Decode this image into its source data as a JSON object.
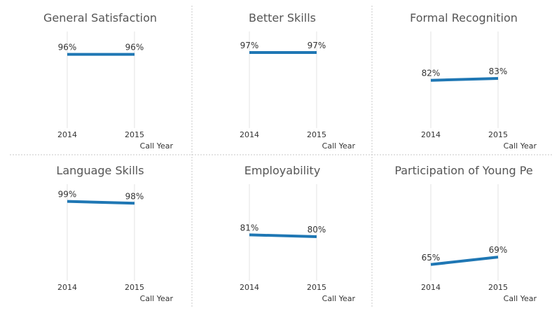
{
  "style": {
    "line_color": "#1f77b4",
    "gridline_color": "#e3e3e3",
    "divider_color": "#c8c8c8",
    "title_color": "#555555",
    "label_color": "#333333"
  },
  "chart_data": [
    {
      "type": "line",
      "title": "General Satisfaction",
      "x": [
        "2014",
        "2015"
      ],
      "xlabel": "Call Year",
      "series": [
        {
          "values": [
            0.96,
            0.96
          ]
        }
      ],
      "data_labels": [
        "96%",
        "96%"
      ],
      "ylim": [
        0.6,
        1.0
      ]
    },
    {
      "type": "line",
      "title": "Better Skills",
      "x": [
        "2014",
        "2015"
      ],
      "xlabel": "Call Year",
      "series": [
        {
          "values": [
            0.97,
            0.97
          ]
        }
      ],
      "data_labels": [
        "97%",
        "97%"
      ],
      "ylim": [
        0.6,
        1.0
      ]
    },
    {
      "type": "line",
      "title": "Formal Recognition",
      "x": [
        "2014",
        "2015"
      ],
      "xlabel": "Call Year",
      "series": [
        {
          "values": [
            0.82,
            0.83
          ]
        }
      ],
      "data_labels": [
        "82%",
        "83%"
      ],
      "ylim": [
        0.6,
        1.0
      ]
    },
    {
      "type": "line",
      "title": "Language Skills",
      "x": [
        "2014",
        "2015"
      ],
      "xlabel": "Call Year",
      "series": [
        {
          "values": [
            0.99,
            0.98
          ]
        }
      ],
      "data_labels": [
        "99%",
        "98%"
      ],
      "ylim": [
        0.6,
        1.0
      ]
    },
    {
      "type": "line",
      "title": "Employability",
      "x": [
        "2014",
        "2015"
      ],
      "xlabel": "Call Year",
      "series": [
        {
          "values": [
            0.81,
            0.8
          ]
        }
      ],
      "data_labels": [
        "81%",
        "80%"
      ],
      "ylim": [
        0.6,
        1.0
      ]
    },
    {
      "type": "line",
      "title": "Participation of Young Pe",
      "x": [
        "2014",
        "2015"
      ],
      "xlabel": "Call Year",
      "series": [
        {
          "values": [
            0.65,
            0.69
          ]
        }
      ],
      "data_labels": [
        "65%",
        "69%"
      ],
      "ylim": [
        0.6,
        1.0
      ]
    }
  ]
}
